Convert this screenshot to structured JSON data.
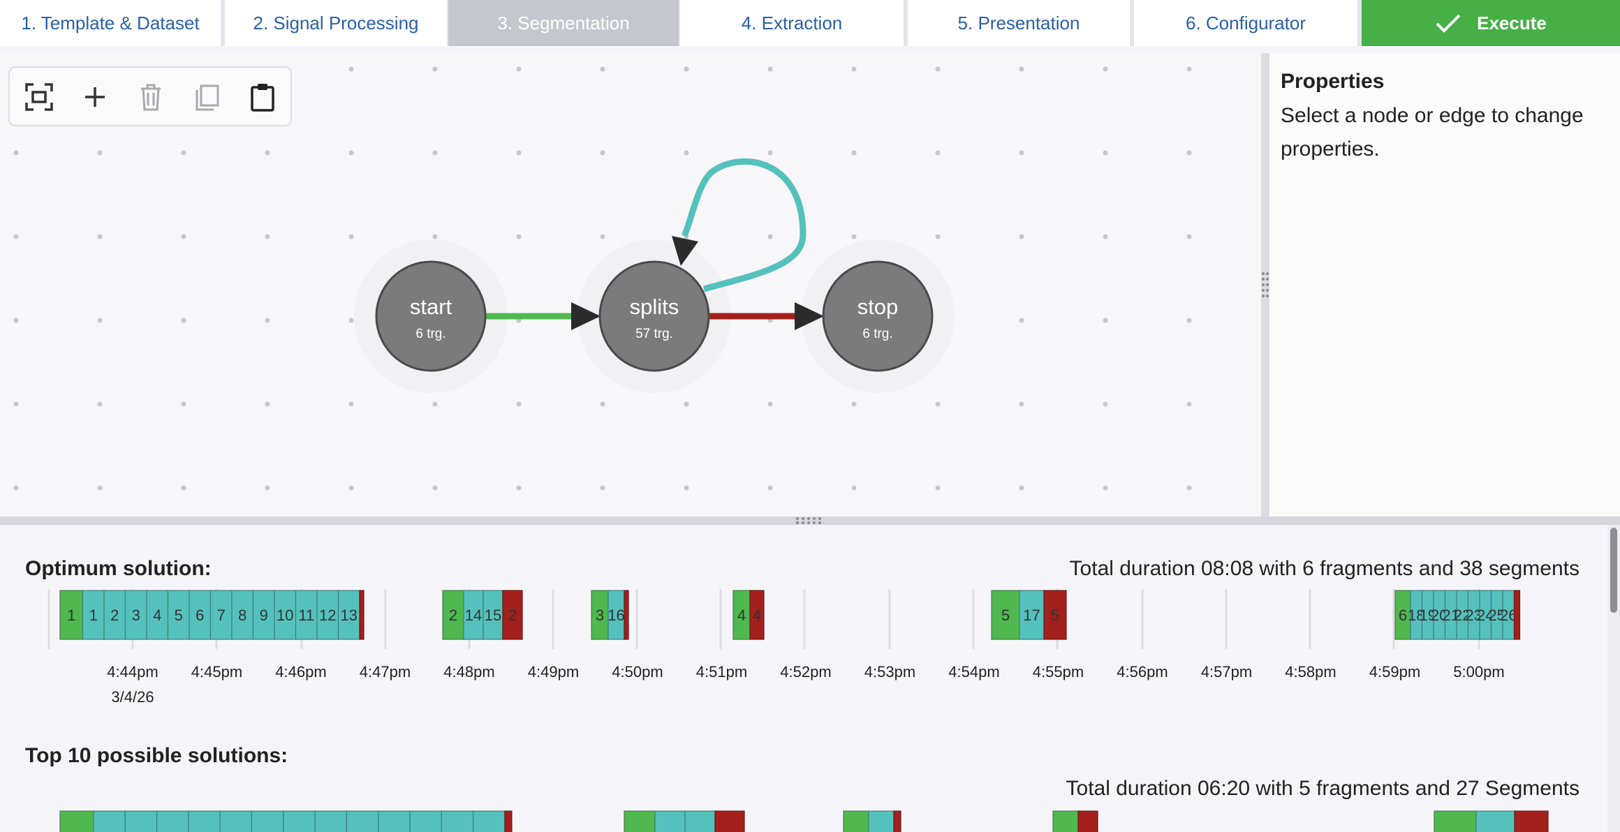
{
  "tabs": [
    {
      "label": "1. Template & Dataset"
    },
    {
      "label": "2. Signal Processing"
    },
    {
      "label": "3. Segmentation",
      "active": true
    },
    {
      "label": "4. Extraction"
    },
    {
      "label": "5. Presentation"
    },
    {
      "label": "6. Configurator"
    }
  ],
  "execute": {
    "label": "Execute",
    "icon": "check-icon"
  },
  "toolbar": {
    "tools": [
      {
        "icon": "fit-view-icon",
        "enabled": true
      },
      {
        "icon": "add-icon",
        "enabled": true
      },
      {
        "icon": "trash-icon",
        "enabled": false
      },
      {
        "icon": "copy-icon",
        "enabled": false
      },
      {
        "icon": "clipboard-icon",
        "enabled": true
      }
    ]
  },
  "graph": {
    "nodes": [
      {
        "id": "start",
        "name": "start",
        "sub": "6 trg."
      },
      {
        "id": "splits",
        "name": "splits",
        "sub": "57 trg."
      },
      {
        "id": "stop",
        "name": "stop",
        "sub": "6 trg."
      }
    ],
    "edges": [
      {
        "from": "start",
        "to": "splits",
        "color": "#4fb84f"
      },
      {
        "from": "splits",
        "to": "splits",
        "color": "#55c1bd"
      },
      {
        "from": "splits",
        "to": "stop",
        "color": "#a3201c"
      }
    ]
  },
  "properties": {
    "title": "Properties",
    "text": "Select a node or edge to change properties."
  },
  "colors": {
    "start": "#4fb84f",
    "split": "#55c1bd",
    "stop": "#a3201c",
    "accent": "#46b046",
    "tab_text": "#2a5fa8"
  },
  "solutions": {
    "optimum_title": "Optimum solution:",
    "optimum_duration": "Total duration 08:08 with 6 fragments and 38 segments",
    "top_title": "Top 10 possible solutions:",
    "top_duration": "Total duration 06:20 with 5 fragments and 27 Segments",
    "time_ticks": [
      "4:44pm",
      "4:45pm",
      "4:46pm",
      "4:47pm",
      "4:48pm",
      "4:49pm",
      "4:50pm",
      "4:51pm",
      "4:52pm",
      "4:53pm",
      "4:54pm",
      "4:55pm",
      "4:56pm",
      "4:57pm",
      "4:58pm",
      "4:59pm",
      "5:00pm"
    ],
    "date_label": "3/4/26",
    "optimum_fragments": [
      {
        "start_label": "1",
        "splits": [
          "1",
          "2",
          "3",
          "4",
          "5",
          "6",
          "7",
          "8",
          "9",
          "10",
          "11",
          "12",
          "13"
        ],
        "stop_label": ""
      },
      {
        "start_label": "2",
        "splits": [
          "14",
          "15"
        ],
        "stop_label": "2"
      },
      {
        "start_label": "3",
        "splits": [
          "16"
        ],
        "stop_label": ""
      },
      {
        "start_label": "4",
        "splits": [],
        "stop_label": "4"
      },
      {
        "start_label": "5",
        "splits": [
          "17"
        ],
        "stop_label": "5"
      },
      {
        "start_label": "6",
        "splits": [
          "18",
          "19",
          "20",
          "21",
          "22",
          "23",
          "24",
          "25",
          "26"
        ],
        "stop_label": ""
      }
    ],
    "top_fragments": [
      {
        "start_label": "",
        "splits": [
          "",
          "",
          "",
          "",
          "",
          "",
          "",
          "",
          "",
          "",
          "",
          "",
          ""
        ],
        "stop_label": ""
      },
      {
        "start_label": "",
        "splits": [
          "",
          ""
        ],
        "stop_label": ""
      },
      {
        "start_label": "",
        "splits": [
          ""
        ],
        "stop_label": ""
      },
      {
        "start_label": "",
        "splits": [],
        "stop_label": ""
      },
      {
        "start_label": "",
        "splits": [
          ""
        ],
        "stop_label": ""
      }
    ]
  }
}
